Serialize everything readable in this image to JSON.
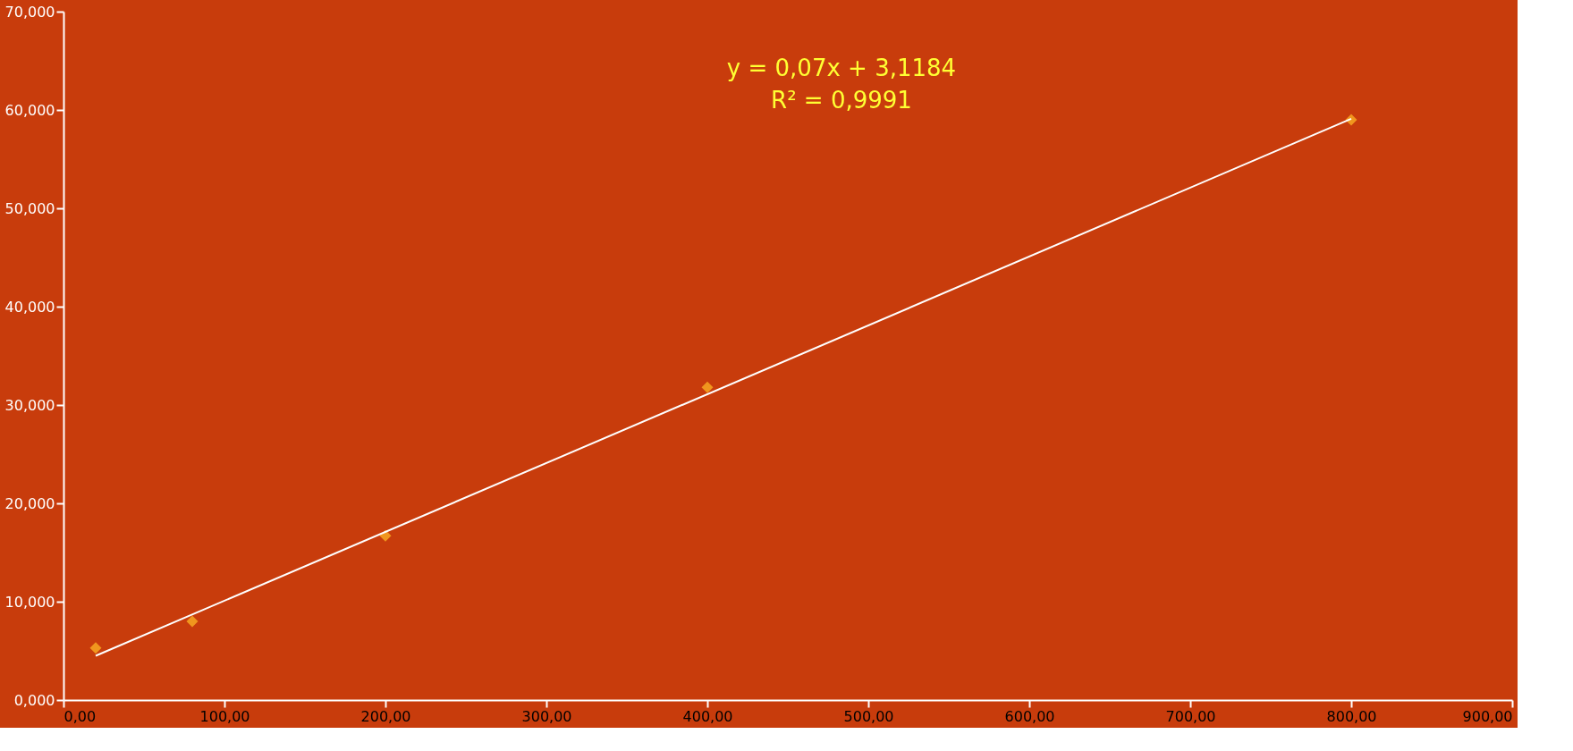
{
  "chart_data": {
    "type": "scatter",
    "x": [
      20,
      80,
      200,
      400,
      800
    ],
    "series": [
      {
        "color": "#f0961e",
        "marker": "diamond",
        "values": [
          5.3,
          8.0,
          16.7,
          31.8,
          59.0
        ]
      },
      {
        "type": "line",
        "color": "#ffffff",
        "x": [
          20,
          800
        ],
        "values": [
          4.5,
          59.1
        ],
        "line_style": "solid"
      }
    ],
    "xlim": [
      0,
      900
    ],
    "ylim": [
      0,
      70
    ],
    "xticks": [
      {
        "value": 0,
        "label": "0,00"
      },
      {
        "value": 100,
        "label": "100,00"
      },
      {
        "value": 200,
        "label": "200,00"
      },
      {
        "value": 300,
        "label": "300,00"
      },
      {
        "value": 400,
        "label": "400,00"
      },
      {
        "value": 500,
        "label": "500,00"
      },
      {
        "value": 600,
        "label": "600,00"
      },
      {
        "value": 700,
        "label": "700,00"
      },
      {
        "value": 800,
        "label": "800,00"
      },
      {
        "value": 900,
        "label": "900,00"
      }
    ],
    "yticks": [
      {
        "value": 0,
        "label": "0,000"
      },
      {
        "value": 10,
        "label": "10,000"
      },
      {
        "value": 20,
        "label": "20,000"
      },
      {
        "value": 30,
        "label": "30,000"
      },
      {
        "value": 40,
        "label": "40,000"
      },
      {
        "value": 50,
        "label": "50,000"
      },
      {
        "value": 60,
        "label": "60,000"
      },
      {
        "value": 70,
        "label": "70,000"
      }
    ],
    "grid": false,
    "annotations": [
      "y = 0,07x + 3,1184",
      "R² = 0,9991"
    ]
  }
}
